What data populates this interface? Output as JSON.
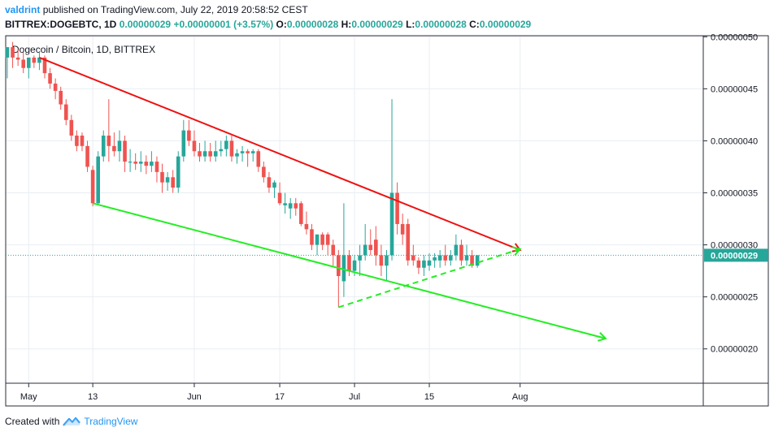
{
  "header": {
    "author": "valdrint",
    "published_text": "published on TradingView.com, July 22, 2019 20:58:52 CEST",
    "symbol": "BITTREX:DOGEBTC, 1D",
    "last": "0.00000029",
    "change": "+0.00000001 (+3.57%)",
    "o_label": "O:",
    "o_value": "0.00000028",
    "h_label": "H:",
    "h_value": "0.00000029",
    "l_label": "L:",
    "l_value": "0.00000028",
    "c_label": "C:",
    "c_value": "0.00000029"
  },
  "footer": {
    "created_with": "Created with",
    "brand": "TradingView"
  },
  "colors": {
    "up": "#27a69a",
    "down": "#ef5350",
    "resistance": "#ee1111",
    "support": "#22ee22",
    "grid": "#e9eef3"
  },
  "chart_data": {
    "type": "candlestick",
    "title": "Dogecoin / Bitcoin, 1D, BITTREX",
    "x_ticks": [
      "May",
      "13",
      "Jun",
      "17",
      "Jul",
      "15",
      "Aug"
    ],
    "y_ticks": [
      "0.00000050",
      "0.00000045",
      "0.00000040",
      "0.00000035",
      "0.00000030",
      "0.00000025",
      "0.00000020"
    ],
    "ylim": [
      1.67e-07,
      5.01e-07
    ],
    "last_price_label": "0.00000029",
    "last_price": 2.9e-07,
    "candles": [
      {
        "date": "2019-04-27",
        "o": 4.8e-07,
        "h": 4.9e-07,
        "l": 4.6e-07,
        "c": 4.9e-07
      },
      {
        "date": "2019-04-28",
        "o": 4.9e-07,
        "h": 4.95e-07,
        "l": 4.7e-07,
        "c": 4.8e-07
      },
      {
        "date": "2019-04-29",
        "o": 4.8e-07,
        "h": 4.88e-07,
        "l": 4.72e-07,
        "c": 4.78e-07
      },
      {
        "date": "2019-04-30",
        "o": 4.78e-07,
        "h": 4.85e-07,
        "l": 4.65e-07,
        "c": 4.7e-07
      },
      {
        "date": "2019-05-01",
        "o": 4.7e-07,
        "h": 4.78e-07,
        "l": 4.6e-07,
        "c": 4.8e-07
      },
      {
        "date": "2019-05-02",
        "o": 4.8e-07,
        "h": 4.82e-07,
        "l": 4.7e-07,
        "c": 4.75e-07
      },
      {
        "date": "2019-05-03",
        "o": 4.75e-07,
        "h": 4.86e-07,
        "l": 4.68e-07,
        "c": 4.8e-07
      },
      {
        "date": "2019-05-04",
        "o": 4.8e-07,
        "h": 4.82e-07,
        "l": 4.6e-07,
        "c": 4.65e-07
      },
      {
        "date": "2019-05-05",
        "o": 4.65e-07,
        "h": 4.7e-07,
        "l": 4.5e-07,
        "c": 4.55e-07
      },
      {
        "date": "2019-05-06",
        "o": 4.55e-07,
        "h": 4.6e-07,
        "l": 4.4e-07,
        "c": 4.48e-07
      },
      {
        "date": "2019-05-07",
        "o": 4.48e-07,
        "h": 4.52e-07,
        "l": 4.3e-07,
        "c": 4.35e-07
      },
      {
        "date": "2019-05-08",
        "o": 4.35e-07,
        "h": 4.4e-07,
        "l": 4.15e-07,
        "c": 4.2e-07
      },
      {
        "date": "2019-05-09",
        "o": 4.2e-07,
        "h": 4.25e-07,
        "l": 4e-07,
        "c": 4.05e-07
      },
      {
        "date": "2019-05-10",
        "o": 4.05e-07,
        "h": 4.1e-07,
        "l": 3.9e-07,
        "c": 3.95e-07
      },
      {
        "date": "2019-05-11",
        "o": 4.05e-07,
        "h": 4.08e-07,
        "l": 3.9e-07,
        "c": 3.95e-07
      },
      {
        "date": "2019-05-12",
        "o": 3.95e-07,
        "h": 4e-07,
        "l": 3.7e-07,
        "c": 3.75e-07
      },
      {
        "date": "2019-05-13",
        "o": 3.72e-07,
        "h": 3.76e-07,
        "l": 3.37e-07,
        "c": 3.4e-07
      },
      {
        "date": "2019-05-14",
        "o": 3.4e-07,
        "h": 3.9e-07,
        "l": 3.38e-07,
        "c": 3.85e-07
      },
      {
        "date": "2019-05-15",
        "o": 3.85e-07,
        "h": 4.1e-07,
        "l": 3.8e-07,
        "c": 4.05e-07
      },
      {
        "date": "2019-05-16",
        "o": 4.05e-07,
        "h": 4.4e-07,
        "l": 3.8e-07,
        "c": 3.95e-07
      },
      {
        "date": "2019-05-17",
        "o": 3.95e-07,
        "h": 4.08e-07,
        "l": 3.85e-07,
        "c": 3.9e-07
      },
      {
        "date": "2019-05-18",
        "o": 3.9e-07,
        "h": 4.1e-07,
        "l": 3.8e-07,
        "c": 4e-07
      },
      {
        "date": "2019-05-19",
        "o": 4e-07,
        "h": 4.05e-07,
        "l": 3.7e-07,
        "c": 3.8e-07
      },
      {
        "date": "2019-05-20",
        "o": 3.8e-07,
        "h": 3.92e-07,
        "l": 3.7e-07,
        "c": 3.8e-07
      },
      {
        "date": "2019-05-21",
        "o": 3.8e-07,
        "h": 3.88e-07,
        "l": 3.72e-07,
        "c": 3.78e-07
      },
      {
        "date": "2019-05-22",
        "o": 3.78e-07,
        "h": 3.9e-07,
        "l": 3.7e-07,
        "c": 3.8e-07
      },
      {
        "date": "2019-05-23",
        "o": 3.8e-07,
        "h": 3.86e-07,
        "l": 3.68e-07,
        "c": 3.76e-07
      },
      {
        "date": "2019-05-24",
        "o": 3.76e-07,
        "h": 3.9e-07,
        "l": 3.7e-07,
        "c": 3.8e-07
      },
      {
        "date": "2019-05-25",
        "o": 3.8e-07,
        "h": 3.85e-07,
        "l": 3.6e-07,
        "c": 3.7e-07
      },
      {
        "date": "2019-05-26",
        "o": 3.7e-07,
        "h": 3.78e-07,
        "l": 3.5e-07,
        "c": 3.6e-07
      },
      {
        "date": "2019-05-27",
        "o": 3.6e-07,
        "h": 3.7e-07,
        "l": 3.52e-07,
        "c": 3.65e-07
      },
      {
        "date": "2019-05-28",
        "o": 3.65e-07,
        "h": 3.72e-07,
        "l": 3.5e-07,
        "c": 3.55e-07
      },
      {
        "date": "2019-05-29",
        "o": 3.55e-07,
        "h": 3.9e-07,
        "l": 3.5e-07,
        "c": 3.85e-07
      },
      {
        "date": "2019-05-30",
        "o": 3.85e-07,
        "h": 4.2e-07,
        "l": 3.8e-07,
        "c": 4.1e-07
      },
      {
        "date": "2019-05-31",
        "o": 4.1e-07,
        "h": 4.2e-07,
        "l": 3.95e-07,
        "c": 4e-07
      },
      {
        "date": "2019-06-01",
        "o": 4e-07,
        "h": 4.1e-07,
        "l": 3.85e-07,
        "c": 3.9e-07
      },
      {
        "date": "2019-06-02",
        "o": 3.9e-07,
        "h": 3.98e-07,
        "l": 3.8e-07,
        "c": 3.85e-07
      },
      {
        "date": "2019-06-03",
        "o": 3.85e-07,
        "h": 4e-07,
        "l": 3.8e-07,
        "c": 3.9e-07
      },
      {
        "date": "2019-06-04",
        "o": 3.9e-07,
        "h": 3.98e-07,
        "l": 3.8e-07,
        "c": 3.85e-07
      },
      {
        "date": "2019-06-05",
        "o": 3.85e-07,
        "h": 4e-07,
        "l": 3.8e-07,
        "c": 3.9e-07
      },
      {
        "date": "2019-06-06",
        "o": 3.9e-07,
        "h": 4e-07,
        "l": 3.85e-07,
        "c": 3.92e-07
      },
      {
        "date": "2019-06-07",
        "o": 3.92e-07,
        "h": 4.05e-07,
        "l": 3.85e-07,
        "c": 4e-07
      },
      {
        "date": "2019-06-08",
        "o": 4e-07,
        "h": 4.05e-07,
        "l": 3.8e-07,
        "c": 3.85e-07
      },
      {
        "date": "2019-06-09",
        "o": 3.85e-07,
        "h": 3.92e-07,
        "l": 3.78e-07,
        "c": 3.88e-07
      },
      {
        "date": "2019-06-10",
        "o": 3.88e-07,
        "h": 3.95e-07,
        "l": 3.8e-07,
        "c": 3.9e-07
      },
      {
        "date": "2019-06-11",
        "o": 3.9e-07,
        "h": 3.92e-07,
        "l": 3.75e-07,
        "c": 3.88e-07
      },
      {
        "date": "2019-06-12",
        "o": 3.88e-07,
        "h": 3.92e-07,
        "l": 3.8e-07,
        "c": 3.9e-07
      },
      {
        "date": "2019-06-13",
        "o": 3.9e-07,
        "h": 3.92e-07,
        "l": 3.7e-07,
        "c": 3.75e-07
      },
      {
        "date": "2019-06-14",
        "o": 3.75e-07,
        "h": 3.8e-07,
        "l": 3.6e-07,
        "c": 3.65e-07
      },
      {
        "date": "2019-06-15",
        "o": 3.65e-07,
        "h": 3.7e-07,
        "l": 3.5e-07,
        "c": 3.55e-07
      },
      {
        "date": "2019-06-16",
        "o": 3.55e-07,
        "h": 3.62e-07,
        "l": 3.45e-07,
        "c": 3.6e-07
      },
      {
        "date": "2019-06-17",
        "o": 3.5e-07,
        "h": 3.6e-07,
        "l": 3.38e-07,
        "c": 3.4e-07
      },
      {
        "date": "2019-06-18",
        "o": 3.38e-07,
        "h": 3.5e-07,
        "l": 3.3e-07,
        "c": 3.4e-07
      },
      {
        "date": "2019-06-19",
        "o": 3.35e-07,
        "h": 3.45e-07,
        "l": 3.25e-07,
        "c": 3.4e-07
      },
      {
        "date": "2019-06-20",
        "o": 3.4e-07,
        "h": 3.45e-07,
        "l": 3.28e-07,
        "c": 3.35e-07
      },
      {
        "date": "2019-06-21",
        "o": 3.4e-07,
        "h": 3.42e-07,
        "l": 3.18e-07,
        "c": 3.2e-07
      },
      {
        "date": "2019-06-22",
        "o": 3.2e-07,
        "h": 3.32e-07,
        "l": 3.1e-07,
        "c": 3.15e-07
      },
      {
        "date": "2019-06-23",
        "o": 3.15e-07,
        "h": 3.2e-07,
        "l": 2.95e-07,
        "c": 3e-07
      },
      {
        "date": "2019-06-24",
        "o": 3e-07,
        "h": 3.1e-07,
        "l": 2.9e-07,
        "c": 3.1e-07
      },
      {
        "date": "2019-06-25",
        "o": 3.1e-07,
        "h": 3.12e-07,
        "l": 2.95e-07,
        "c": 3e-07
      },
      {
        "date": "2019-06-26",
        "o": 3.1e-07,
        "h": 3.12e-07,
        "l": 2.9e-07,
        "c": 3e-07
      },
      {
        "date": "2019-06-27",
        "o": 3e-07,
        "h": 3.05e-07,
        "l": 2.8e-07,
        "c": 2.9e-07
      },
      {
        "date": "2019-06-28",
        "o": 2.9e-07,
        "h": 2.95e-07,
        "l": 2.4e-07,
        "c": 2.7e-07
      },
      {
        "date": "2019-06-29",
        "o": 2.65e-07,
        "h": 3.4e-07,
        "l": 2.5e-07,
        "c": 2.9e-07
      },
      {
        "date": "2019-06-30",
        "o": 2.9e-07,
        "h": 2.95e-07,
        "l": 2.7e-07,
        "c": 2.75e-07
      },
      {
        "date": "2019-07-01",
        "o": 2.75e-07,
        "h": 2.9e-07,
        "l": 2.7e-07,
        "c": 2.85e-07
      },
      {
        "date": "2019-07-02",
        "o": 2.85e-07,
        "h": 3e-07,
        "l": 2.7e-07,
        "c": 2.9e-07
      },
      {
        "date": "2019-07-03",
        "o": 2.9e-07,
        "h": 3.2e-07,
        "l": 2.85e-07,
        "c": 3e-07
      },
      {
        "date": "2019-07-04",
        "o": 3e-07,
        "h": 3.15e-07,
        "l": 2.9e-07,
        "c": 2.95e-07
      },
      {
        "date": "2019-07-05",
        "o": 3.05e-07,
        "h": 3.18e-07,
        "l": 2.8e-07,
        "c": 2.9e-07
      },
      {
        "date": "2019-07-06",
        "o": 2.9e-07,
        "h": 3e-07,
        "l": 2.7e-07,
        "c": 2.8e-07
      },
      {
        "date": "2019-07-07",
        "o": 2.8e-07,
        "h": 2.95e-07,
        "l": 2.65e-07,
        "c": 2.9e-07
      },
      {
        "date": "2019-07-08",
        "o": 2.9e-07,
        "h": 4.4e-07,
        "l": 2.85e-07,
        "c": 3.5e-07
      },
      {
        "date": "2019-07-09",
        "o": 3.5e-07,
        "h": 3.6e-07,
        "l": 3.1e-07,
        "c": 3.2e-07
      },
      {
        "date": "2019-07-10",
        "o": 3.2e-07,
        "h": 3.3e-07,
        "l": 3e-07,
        "c": 3.1e-07
      },
      {
        "date": "2019-07-11",
        "o": 3.2e-07,
        "h": 3.25e-07,
        "l": 2.8e-07,
        "c": 2.85e-07
      },
      {
        "date": "2019-07-12",
        "o": 2.9e-07,
        "h": 3e-07,
        "l": 2.8e-07,
        "c": 2.85e-07
      },
      {
        "date": "2019-07-13",
        "o": 2.85e-07,
        "h": 2.88e-07,
        "l": 2.72e-07,
        "c": 2.78e-07
      },
      {
        "date": "2019-07-14",
        "o": 2.78e-07,
        "h": 2.9e-07,
        "l": 2.7e-07,
        "c": 2.85e-07
      },
      {
        "date": "2019-07-15",
        "o": 2.8e-07,
        "h": 2.92e-07,
        "l": 2.75e-07,
        "c": 2.85e-07
      },
      {
        "date": "2019-07-16",
        "o": 2.85e-07,
        "h": 2.92e-07,
        "l": 2.78e-07,
        "c": 2.88e-07
      },
      {
        "date": "2019-07-17",
        "o": 2.85e-07,
        "h": 2.95e-07,
        "l": 2.78e-07,
        "c": 2.9e-07
      },
      {
        "date": "2019-07-18",
        "o": 2.9e-07,
        "h": 3e-07,
        "l": 2.8e-07,
        "c": 2.85e-07
      },
      {
        "date": "2019-07-19",
        "o": 2.85e-07,
        "h": 2.95e-07,
        "l": 2.8e-07,
        "c": 2.9e-07
      },
      {
        "date": "2019-07-20",
        "o": 2.9e-07,
        "h": 3.1e-07,
        "l": 2.85e-07,
        "c": 3e-07
      },
      {
        "date": "2019-07-21",
        "o": 3e-07,
        "h": 3.05e-07,
        "l": 2.8e-07,
        "c": 2.85e-07
      },
      {
        "date": "2019-07-22",
        "o": 2.85e-07,
        "h": 3e-07,
        "l": 2.8e-07,
        "c": 2.9e-07
      },
      {
        "date": "2019-07-23",
        "o": 2.9e-07,
        "h": 2.95e-07,
        "l": 2.78e-07,
        "c": 2.8e-07
      },
      {
        "date": "2019-07-24",
        "o": 2.8e-07,
        "h": 2.9e-07,
        "l": 2.78e-07,
        "c": 2.9e-07
      }
    ],
    "annotations": [
      {
        "name": "resistance-line",
        "color": "#ee1111",
        "from": {
          "date": "2019-05-03",
          "price": 4.8e-07
        },
        "to": {
          "date": "2019-08-01",
          "price": 2.95e-07
        },
        "arrow": true,
        "dashed": false
      },
      {
        "name": "support-line",
        "color": "#22ee22",
        "from": {
          "date": "2019-05-13",
          "price": 3.4e-07
        },
        "to": {
          "date": "2019-08-17",
          "price": 2.1e-07
        },
        "arrow": true,
        "dashed": false
      },
      {
        "name": "ascending-support-line",
        "color": "#22ee22",
        "from": {
          "date": "2019-06-28",
          "price": 2.4e-07
        },
        "to": {
          "date": "2019-08-01",
          "price": 2.96e-07
        },
        "arrow": true,
        "dashed": true
      }
    ]
  }
}
